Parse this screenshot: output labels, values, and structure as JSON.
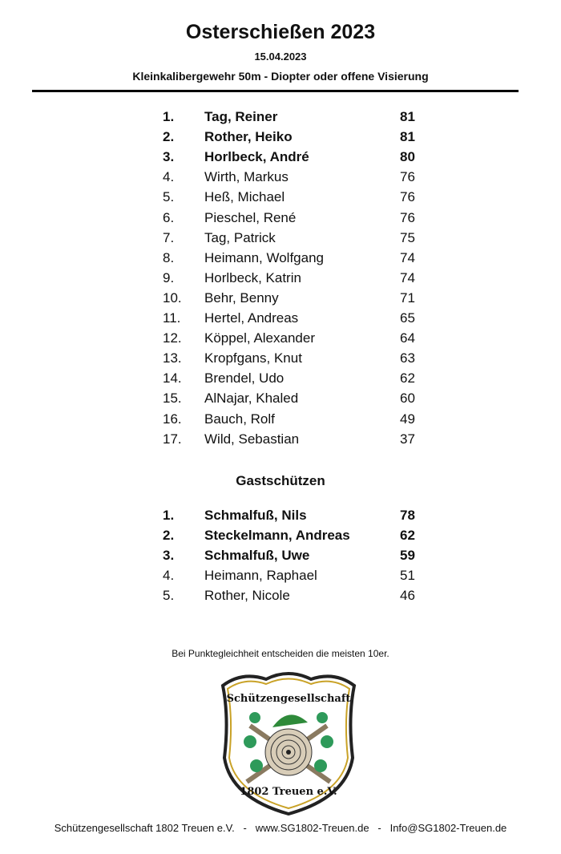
{
  "header": {
    "title": "Osterschießen 2023",
    "date": "15.04.2023",
    "discipline": "Kleinkalibergewehr 50m - Diopter oder offene Visierung"
  },
  "results": [
    {
      "rank": "1.",
      "name": "Tag, Reiner",
      "score": "81",
      "bold": true
    },
    {
      "rank": "2.",
      "name": "Rother, Heiko",
      "score": "81",
      "bold": true
    },
    {
      "rank": "3.",
      "name": "Horlbeck, André",
      "score": "80",
      "bold": true
    },
    {
      "rank": "4.",
      "name": "Wirth, Markus",
      "score": "76"
    },
    {
      "rank": "5.",
      "name": "Heß, Michael",
      "score": "76"
    },
    {
      "rank": "6.",
      "name": "Pieschel, René",
      "score": "76"
    },
    {
      "rank": "7.",
      "name": "Tag, Patrick",
      "score": "75"
    },
    {
      "rank": "8.",
      "name": "Heimann, Wolfgang",
      "score": "74"
    },
    {
      "rank": "9.",
      "name": "Horlbeck, Katrin",
      "score": "74"
    },
    {
      "rank": "10.",
      "name": "Behr, Benny",
      "score": "71"
    },
    {
      "rank": "11.",
      "name": "Hertel, Andreas",
      "score": "65"
    },
    {
      "rank": "12.",
      "name": "Köppel, Alexander",
      "score": "64"
    },
    {
      "rank": "13.",
      "name": "Kropfgans, Knut",
      "score": "63"
    },
    {
      "rank": "14.",
      "name": "Brendel, Udo",
      "score": "62"
    },
    {
      "rank": "15.",
      "name": "AlNajar, Khaled",
      "score": "60"
    },
    {
      "rank": "16.",
      "name": "Bauch, Rolf",
      "score": "49"
    },
    {
      "rank": "17.",
      "name": "Wild, Sebastian",
      "score": "37"
    }
  ],
  "guests": {
    "heading": "Gastschützen",
    "results": [
      {
        "rank": "1.",
        "name": "Schmalfuß, Nils",
        "score": "78",
        "bold": true
      },
      {
        "rank": "2.",
        "name": "Steckelmann, Andreas",
        "score": "62",
        "bold": true
      },
      {
        "rank": "3.",
        "name": "Schmalfuß, Uwe",
        "score": "59",
        "bold": true
      },
      {
        "rank": "4.",
        "name": "Heimann, Raphael",
        "score": "51"
      },
      {
        "rank": "5.",
        "name": "Rother, Nicole",
        "score": "46"
      }
    ]
  },
  "note": "Bei Punktegleichheit entscheiden die meisten 10er.",
  "logo": {
    "top_text": "Schützengesellschaft",
    "bottom_text": "1802 Treuen e.V."
  },
  "footer": "Schützengesellschaft 1802 Treuen e.V.   -   www.SG1802-Treuen.de   -   Info@SG1802-Treuen.de"
}
